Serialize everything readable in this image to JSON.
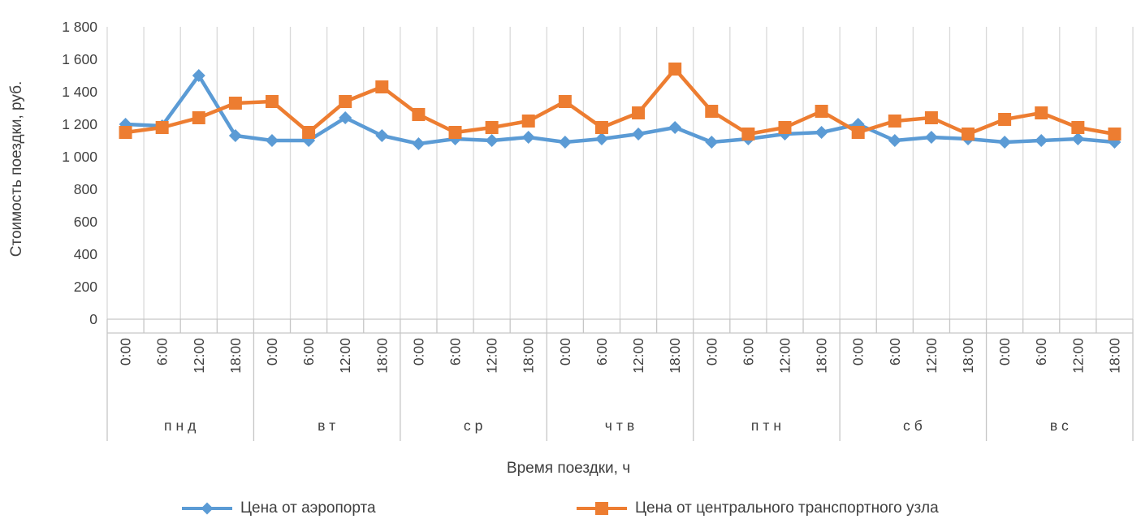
{
  "chart_data": {
    "type": "line",
    "ylabel": "Стоимость поездки, руб.",
    "xlabel": "Время поездки, ч",
    "ylim": [
      0,
      1800
    ],
    "ytick_step": 200,
    "ytick_labels": [
      "1 800",
      "1 600",
      "1 400",
      "1 200",
      "1 000",
      "800",
      "600",
      "400",
      "200",
      "0"
    ],
    "days": [
      "пнд",
      "вт",
      "ср",
      "чтв",
      "птн",
      "сб",
      "вс"
    ],
    "times": [
      "0:00",
      "6:00",
      "12:00",
      "18:00"
    ],
    "grid_on": true,
    "legend_position": "bottom",
    "colors": {
      "grid": "#D9D9D9",
      "axis": "#C6C6C6",
      "text": "#3F3F3F",
      "series_airport": "#5B9BD5",
      "series_hub": "#ED7D31"
    },
    "series": [
      {
        "name": "Цена от аэропорта",
        "marker": "diamond",
        "color": "#5B9BD5",
        "values": [
          1200,
          1190,
          1500,
          1130,
          1100,
          1100,
          1240,
          1130,
          1080,
          1110,
          1100,
          1120,
          1090,
          1110,
          1140,
          1180,
          1090,
          1110,
          1140,
          1150,
          1200,
          1100,
          1120,
          1110,
          1090,
          1100,
          1110,
          1090
        ]
      },
      {
        "name": "Цена от центрального транспортного узла",
        "marker": "square",
        "color": "#ED7D31",
        "values": [
          1150,
          1180,
          1240,
          1330,
          1340,
          1150,
          1340,
          1430,
          1260,
          1150,
          1180,
          1220,
          1340,
          1180,
          1270,
          1540,
          1280,
          1140,
          1180,
          1280,
          1150,
          1220,
          1240,
          1140,
          1230,
          1270,
          1180,
          1140
        ]
      }
    ]
  }
}
